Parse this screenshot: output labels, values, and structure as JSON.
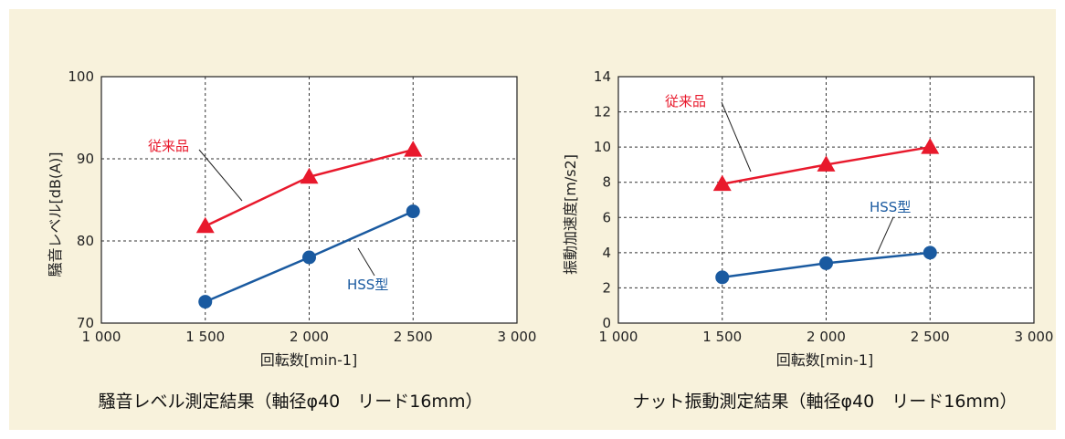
{
  "chart_data": [
    {
      "type": "line",
      "caption": "騒音レベル測定結果（軸径φ40　リード16mm）",
      "xlabel": "回転数[min-1]",
      "ylabel": "騒音レベル[dB(A)]",
      "xlim": [
        1000,
        3000
      ],
      "ylim": [
        70,
        100
      ],
      "x_ticks": [
        1000,
        1500,
        2000,
        2500,
        3000
      ],
      "x_tick_labels": [
        "1 000",
        "1 500",
        "2 000",
        "2 500",
        "3 000"
      ],
      "y_ticks": [
        70,
        80,
        90,
        100
      ],
      "y_tick_labels": [
        "70",
        "80",
        "90",
        "100"
      ],
      "grid": true,
      "series": [
        {
          "name": "従来品",
          "color": "#e8192c",
          "marker": "triangle",
          "x": [
            1500,
            2000,
            2500
          ],
          "values": [
            81.8,
            87.8,
            91.1
          ]
        },
        {
          "name": "HSS型",
          "color": "#1a5aa0",
          "marker": "circle",
          "x": [
            1500,
            2000,
            2500
          ],
          "values": [
            72.6,
            78.0,
            83.6
          ]
        }
      ]
    },
    {
      "type": "line",
      "caption": "ナット振動測定結果（軸径φ40　リード16mm）",
      "xlabel": "回転数[min-1]",
      "ylabel": "振動加速度[m/s2]",
      "xlim": [
        1000,
        3000
      ],
      "ylim": [
        0,
        14
      ],
      "x_ticks": [
        1000,
        1500,
        2000,
        2500,
        3000
      ],
      "x_tick_labels": [
        "1 000",
        "1 500",
        "2 000",
        "2 500",
        "3 000"
      ],
      "y_ticks": [
        0,
        2,
        4,
        6,
        8,
        10,
        12,
        14
      ],
      "y_tick_labels": [
        "0",
        "2",
        "4",
        "6",
        "8",
        "10",
        "12",
        "14"
      ],
      "grid": true,
      "series": [
        {
          "name": "従来品",
          "color": "#e8192c",
          "marker": "triangle",
          "x": [
            1500,
            2000,
            2500
          ],
          "values": [
            7.9,
            9.0,
            10.0
          ]
        },
        {
          "name": "HSS型",
          "color": "#1a5aa0",
          "marker": "circle",
          "x": [
            1500,
            2000,
            2500
          ],
          "values": [
            2.6,
            3.4,
            4.0
          ]
        }
      ]
    }
  ]
}
